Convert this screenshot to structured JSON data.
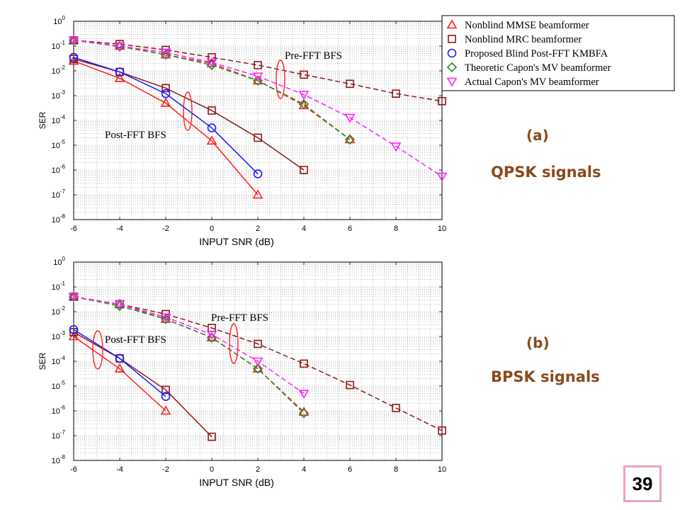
{
  "chart_data": [
    {
      "type": "line",
      "panel": "(a)",
      "xlabel": "INPUT SNR (dB)",
      "ylabel": "SER",
      "xlim": [
        -6,
        10
      ],
      "ylim": [
        1e-08,
        1
      ],
      "yscale": "log",
      "xticks": [
        -6,
        -4,
        -2,
        0,
        2,
        4,
        6,
        8,
        10
      ],
      "yticks": [
        {
          "base": "10",
          "exp": "-8"
        },
        {
          "base": "10",
          "exp": "-7"
        },
        {
          "base": "10",
          "exp": "-6"
        },
        {
          "base": "10",
          "exp": "-5"
        },
        {
          "base": "10",
          "exp": "-4"
        },
        {
          "base": "10",
          "exp": "-3"
        },
        {
          "base": "10",
          "exp": "-2"
        },
        {
          "base": "10",
          "exp": "-1"
        },
        {
          "base": "10",
          "exp": "0"
        }
      ],
      "grid": true,
      "legend_position": "top-right",
      "annotations": [
        "Pre-FFT BFS",
        "Post-FFT BFS"
      ],
      "series": [
        {
          "name": "Nonblind MMSE beamformer",
          "marker": "triangle-up",
          "color": "#ff2020",
          "dash": "solid",
          "x": [
            -6,
            -4,
            -2,
            0,
            2
          ],
          "y": [
            0.025,
            0.005,
            0.0005,
            1.5e-05,
            1e-07
          ]
        },
        {
          "name": "Nonblind MRC beamformer",
          "marker": "square",
          "color": "#8b1a1a",
          "dash": "solid",
          "x": [
            -6,
            -4,
            -2,
            0,
            2,
            4
          ],
          "y": [
            0.03,
            0.009,
            0.002,
            0.00025,
            2e-05,
            1e-06
          ]
        },
        {
          "name": "Proposed Blind Post-FFT KMBFA",
          "marker": "circle",
          "color": "#1a1aff",
          "dash": "solid",
          "x": [
            -6,
            -4,
            -2,
            0,
            2
          ],
          "y": [
            0.035,
            0.009,
            0.0012,
            5e-05,
            7e-07
          ]
        },
        {
          "name": "",
          "marker": "triangle-up",
          "color": "#ff2020",
          "dash": "dashed",
          "x": [
            -6,
            -4,
            -2,
            0,
            2,
            4,
            6
          ],
          "y": [
            0.17,
            0.1,
            0.045,
            0.02,
            0.004,
            0.0004,
            1.7e-05
          ]
        },
        {
          "name": "",
          "marker": "square",
          "color": "#8b1a1a",
          "dash": "dashed",
          "x": [
            -6,
            -4,
            -2,
            0,
            2,
            4,
            6,
            8,
            10
          ],
          "y": [
            0.17,
            0.12,
            0.07,
            0.035,
            0.017,
            0.007,
            0.003,
            0.0012,
            0.0006
          ]
        },
        {
          "name": "Theoretic Capon's MV beamformer",
          "marker": "diamond",
          "color": "#2a8a2a",
          "dash": "dashed",
          "x": [
            -6,
            -4,
            -2,
            0,
            2,
            4,
            6
          ],
          "y": [
            0.17,
            0.095,
            0.045,
            0.017,
            0.004,
            0.00045,
            1.7e-05
          ]
        },
        {
          "name": "Actual Capon's MV beamformer",
          "marker": "triangle-down",
          "color": "#ff20ff",
          "dash": "dashed",
          "x": [
            -6,
            -4,
            -2,
            0,
            2,
            4,
            6,
            8,
            10
          ],
          "y": [
            0.17,
            0.1,
            0.055,
            0.022,
            0.006,
            0.0011,
            0.00013,
            9e-06,
            5.5e-07
          ]
        }
      ]
    },
    {
      "type": "line",
      "panel": "(b)",
      "xlabel": "INPUT SNR (dB)",
      "ylabel": "SER",
      "xlim": [
        -6,
        10
      ],
      "ylim": [
        1e-08,
        1
      ],
      "yscale": "log",
      "xticks": [
        -6,
        -4,
        -2,
        0,
        2,
        4,
        6,
        8,
        10
      ],
      "yticks": [
        {
          "base": "10",
          "exp": "-8"
        },
        {
          "base": "10",
          "exp": "-7"
        },
        {
          "base": "10",
          "exp": "-6"
        },
        {
          "base": "10",
          "exp": "-5"
        },
        {
          "base": "10",
          "exp": "-4"
        },
        {
          "base": "10",
          "exp": "-3"
        },
        {
          "base": "10",
          "exp": "-2"
        },
        {
          "base": "10",
          "exp": "-1"
        },
        {
          "base": "10",
          "exp": "0"
        }
      ],
      "grid": true,
      "annotations": [
        "Pre-FFT BFS",
        "Post-FFT BFS"
      ],
      "series": [
        {
          "name": "",
          "marker": "triangle-up",
          "color": "#ff2020",
          "dash": "solid",
          "x": [
            -6,
            -4,
            -2
          ],
          "y": [
            0.001,
            5e-05,
            1e-06
          ]
        },
        {
          "name": "",
          "marker": "square",
          "color": "#8b1a1a",
          "dash": "solid",
          "x": [
            -6,
            -4,
            -2,
            0
          ],
          "y": [
            0.0015,
            0.00013,
            7e-06,
            9e-08
          ]
        },
        {
          "name": "",
          "marker": "circle",
          "color": "#1a1aff",
          "dash": "solid",
          "x": [
            -6,
            -4,
            -2
          ],
          "y": [
            0.0019,
            0.00013,
            3.8e-06
          ]
        },
        {
          "name": "",
          "marker": "triangle-up",
          "color": "#ff2020",
          "dash": "dashed",
          "x": [
            -6,
            -4,
            -2,
            0,
            2,
            4
          ],
          "y": [
            0.04,
            0.02,
            0.005,
            0.0009,
            5e-05,
            9e-07
          ]
        },
        {
          "name": "",
          "marker": "square",
          "color": "#8b1a1a",
          "dash": "dashed",
          "x": [
            -6,
            -4,
            -2,
            0,
            2,
            4,
            6,
            8,
            10
          ],
          "y": [
            0.04,
            0.02,
            0.008,
            0.0022,
            0.0005,
            8e-05,
            1.1e-05,
            1.3e-06,
            1.6e-07
          ]
        },
        {
          "name": "",
          "marker": "diamond",
          "color": "#2a8a2a",
          "dash": "dashed",
          "x": [
            -6,
            -4,
            -2,
            0,
            2,
            4
          ],
          "y": [
            0.04,
            0.017,
            0.005,
            0.0009,
            5e-05,
            8e-07
          ]
        },
        {
          "name": "",
          "marker": "triangle-down",
          "color": "#ff20ff",
          "dash": "dashed",
          "x": [
            -6,
            -4,
            -2,
            0,
            2,
            4
          ],
          "y": [
            0.04,
            0.02,
            0.006,
            0.0012,
            0.0001,
            5e-06
          ]
        }
      ]
    }
  ],
  "labels": {
    "panel_a_tag": "(a)",
    "panel_a_desc": "QPSK signals",
    "panel_b_tag": "(b)",
    "panel_b_desc": "BPSK signals",
    "page_number": "39"
  }
}
